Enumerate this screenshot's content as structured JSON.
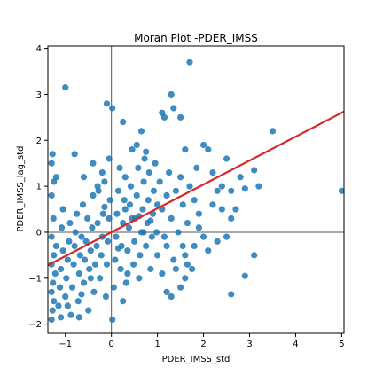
{
  "chart_data": {
    "type": "scatter",
    "title": "Moran Plot -PDER_IMSS",
    "xlabel": "PDER_IMSS_std",
    "ylabel": "PDER_IMSS_lag_std",
    "xlim": [
      -1.38,
      5.05
    ],
    "ylim": [
      -2.2,
      4.05
    ],
    "xticks": [
      -1,
      0,
      1,
      2,
      3,
      4,
      5
    ],
    "yticks": [
      -2,
      -1,
      0,
      1,
      2,
      3,
      4
    ],
    "reference_lines": {
      "x": 0,
      "y": 0
    },
    "grid": false,
    "legend": "none",
    "regression_line": {
      "intercept": 0.0,
      "slope": 0.52,
      "color": "#d62728"
    },
    "point_color": "#1f77b4",
    "points": [
      [
        -1.3,
        -1.9
      ],
      [
        -1.28,
        -1.7
      ],
      [
        -1.25,
        -1.5
      ],
      [
        -1.3,
        -1.3
      ],
      [
        -1.27,
        -1.1
      ],
      [
        -1.22,
        -0.9
      ],
      [
        -1.3,
        -0.7
      ],
      [
        -1.25,
        -0.5
      ],
      [
        -1.2,
        -0.3
      ],
      [
        -1.3,
        -0.1
      ],
      [
        -1.26,
        0.3
      ],
      [
        -1.3,
        0.8
      ],
      [
        -1.25,
        1.1
      ],
      [
        -1.3,
        1.5
      ],
      [
        -1.28,
        1.7
      ],
      [
        -1.2,
        1.2
      ],
      [
        -1.15,
        -1.6
      ],
      [
        -1.12,
        -1.2
      ],
      [
        -1.1,
        -0.8
      ],
      [
        -1.05,
        -0.4
      ],
      [
        -1.08,
        0.1
      ],
      [
        -1.05,
        0.5
      ],
      [
        -1.0,
        -1.4
      ],
      [
        -0.98,
        -1.0
      ],
      [
        -0.95,
        -0.6
      ],
      [
        -0.92,
        -0.2
      ],
      [
        -0.9,
        0.2
      ],
      [
        -0.88,
        -1.8
      ],
      [
        -0.85,
        -1.2
      ],
      [
        -0.82,
        -0.7
      ],
      [
        -0.8,
        -0.3
      ],
      [
        -0.78,
        0.0
      ],
      [
        -0.75,
        0.4
      ],
      [
        -0.72,
        -1.5
      ],
      [
        -0.7,
        -0.9
      ],
      [
        -0.68,
        -0.5
      ],
      [
        -0.65,
        -0.1
      ],
      [
        -0.62,
        0.6
      ],
      [
        -0.6,
        -1.1
      ],
      [
        -0.58,
        -0.6
      ],
      [
        -0.55,
        -0.2
      ],
      [
        -0.52,
        0.3
      ],
      [
        -0.5,
        -1.7
      ],
      [
        -0.48,
        -0.8
      ],
      [
        -0.45,
        -0.4
      ],
      [
        -0.42,
        0.1
      ],
      [
        -0.4,
        0.8
      ],
      [
        -0.38,
        -1.3
      ],
      [
        -0.35,
        -0.7
      ],
      [
        -0.32,
        -0.3
      ],
      [
        -0.3,
        0.2
      ],
      [
        -0.28,
        0.9
      ],
      [
        -0.25,
        -1.0
      ],
      [
        -0.22,
        -0.5
      ],
      [
        -0.2,
        -0.1
      ],
      [
        -0.18,
        0.4
      ],
      [
        -0.15,
        1.1
      ],
      [
        -0.12,
        -1.4
      ],
      [
        -0.1,
        -0.7
      ],
      [
        -0.08,
        -0.2
      ],
      [
        -0.05,
        0.3
      ],
      [
        -0.03,
        0.7
      ],
      [
        -1.0,
        3.15
      ],
      [
        -0.8,
        1.7
      ],
      [
        -0.6,
        1.2
      ],
      [
        -0.4,
        1.5
      ],
      [
        -0.3,
        1.0
      ],
      [
        -0.2,
        1.3
      ],
      [
        -0.1,
        2.8
      ],
      [
        -0.05,
        1.6
      ],
      [
        0.02,
        -1.9
      ],
      [
        0.05,
        -1.2
      ],
      [
        0.08,
        -0.6
      ],
      [
        0.1,
        -0.1
      ],
      [
        0.12,
        0.4
      ],
      [
        0.15,
        0.9
      ],
      [
        0.18,
        1.4
      ],
      [
        0.2,
        -0.8
      ],
      [
        0.22,
        -0.3
      ],
      [
        0.25,
        0.2
      ],
      [
        0.28,
        0.7
      ],
      [
        0.3,
        1.2
      ],
      [
        0.32,
        -1.1
      ],
      [
        0.35,
        -0.4
      ],
      [
        0.38,
        0.1
      ],
      [
        0.4,
        0.6
      ],
      [
        0.42,
        1.0
      ],
      [
        0.45,
        1.8
      ],
      [
        0.48,
        -0.7
      ],
      [
        0.5,
        -0.2
      ],
      [
        0.52,
        0.3
      ],
      [
        0.55,
        0.8
      ],
      [
        0.58,
        1.4
      ],
      [
        0.6,
        -1.0
      ],
      [
        0.62,
        -0.5
      ],
      [
        0.65,
        0.0
      ],
      [
        0.68,
        0.5
      ],
      [
        0.7,
        1.1
      ],
      [
        0.72,
        1.6
      ],
      [
        0.75,
        -0.3
      ],
      [
        0.78,
        0.2
      ],
      [
        0.8,
        0.7
      ],
      [
        0.82,
        1.3
      ],
      [
        0.85,
        -0.8
      ],
      [
        0.88,
        -0.1
      ],
      [
        0.9,
        0.4
      ],
      [
        0.92,
        0.9
      ],
      [
        0.95,
        1.5
      ],
      [
        0.98,
        0.0
      ],
      [
        1.0,
        0.6
      ],
      [
        0.02,
        2.7
      ],
      [
        0.25,
        2.4
      ],
      [
        0.55,
        1.9
      ],
      [
        0.65,
        2.2
      ],
      [
        0.75,
        1.75
      ],
      [
        1.1,
        2.6
      ],
      [
        1.15,
        2.5
      ],
      [
        1.3,
        3.0
      ],
      [
        1.35,
        2.7
      ],
      [
        1.5,
        2.5
      ],
      [
        1.7,
        3.7
      ],
      [
        1.6,
        1.8
      ],
      [
        1.05,
        1.1
      ],
      [
        1.1,
        0.5
      ],
      [
        1.15,
        -0.1
      ],
      [
        1.2,
        0.8
      ],
      [
        1.25,
        1.3
      ],
      [
        1.3,
        0.3
      ],
      [
        1.35,
        -0.6
      ],
      [
        1.4,
        0.9
      ],
      [
        1.45,
        0.0
      ],
      [
        1.5,
        1.2
      ],
      [
        1.55,
        0.6
      ],
      [
        1.6,
        -0.5
      ],
      [
        1.65,
        0.2
      ],
      [
        1.7,
        1.0
      ],
      [
        1.75,
        -0.8
      ],
      [
        1.8,
        0.7
      ],
      [
        1.85,
        1.4
      ],
      [
        1.9,
        0.4
      ],
      [
        1.0,
        -0.5
      ],
      [
        1.1,
        -0.9
      ],
      [
        1.2,
        -1.3
      ],
      [
        1.3,
        -1.4
      ],
      [
        1.5,
        -1.2
      ],
      [
        1.6,
        -1.0
      ],
      [
        1.2,
        -0.3
      ],
      [
        1.4,
        -0.8
      ],
      [
        1.55,
        -0.3
      ],
      [
        1.65,
        -0.7
      ],
      [
        2.0,
        1.9
      ],
      [
        2.1,
        1.8
      ],
      [
        2.2,
        1.3
      ],
      [
        2.3,
        0.9
      ],
      [
        2.4,
        0.5
      ],
      [
        2.5,
        1.6
      ],
      [
        2.6,
        0.3
      ],
      [
        2.7,
        0.5
      ],
      [
        2.8,
        1.2
      ],
      [
        2.9,
        0.95
      ],
      [
        2.0,
        -0.1
      ],
      [
        2.1,
        -0.4
      ],
      [
        2.3,
        -0.2
      ],
      [
        2.5,
        -0.1
      ],
      [
        2.6,
        -1.35
      ],
      [
        2.9,
        -0.95
      ],
      [
        3.1,
        -0.5
      ],
      [
        3.1,
        1.35
      ],
      [
        3.2,
        1.0
      ],
      [
        3.5,
        2.2
      ],
      [
        2.2,
        0.6
      ],
      [
        2.4,
        1.0
      ],
      [
        2.6,
        0.9
      ],
      [
        5.0,
        0.9
      ],
      [
        1.8,
        -0.3
      ],
      [
        1.9,
        0.1
      ],
      [
        0.3,
        0.5
      ],
      [
        0.45,
        0.3
      ],
      [
        0.6,
        0.35
      ],
      [
        0.7,
        0.0
      ],
      [
        0.15,
        -0.35
      ],
      [
        -0.15,
        0.55
      ],
      [
        0.35,
        -0.9
      ],
      [
        0.85,
        0.25
      ],
      [
        -0.45,
        -1.0
      ],
      [
        -0.65,
        -1.35
      ],
      [
        -0.95,
        -1.6
      ],
      [
        -1.1,
        -1.85
      ],
      [
        -0.7,
        -1.85
      ],
      [
        0.25,
        -1.5
      ]
    ]
  }
}
